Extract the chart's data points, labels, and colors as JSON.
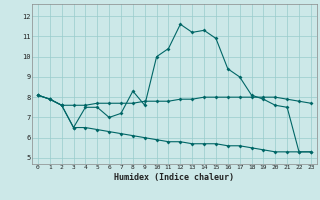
{
  "xlabel": "Humidex (Indice chaleur)",
  "background_color": "#cce8e8",
  "grid_color": "#99cccc",
  "line_color": "#006666",
  "x_ticks": [
    0,
    1,
    2,
    3,
    4,
    5,
    6,
    7,
    8,
    9,
    10,
    11,
    12,
    13,
    14,
    15,
    16,
    17,
    18,
    19,
    20,
    21,
    22,
    23
  ],
  "y_ticks": [
    5,
    6,
    7,
    8,
    9,
    10,
    11,
    12
  ],
  "xlim": [
    -0.5,
    23.5
  ],
  "ylim": [
    4.7,
    12.6
  ],
  "line1_x": [
    0,
    1,
    2,
    3,
    4,
    5,
    6,
    7,
    8,
    9,
    10,
    11,
    12,
    13,
    14,
    15,
    16,
    17,
    18,
    19,
    20,
    21,
    22,
    23
  ],
  "line1_y": [
    8.1,
    7.9,
    7.6,
    6.5,
    7.5,
    7.5,
    7.0,
    7.2,
    8.3,
    7.6,
    10.0,
    10.4,
    11.6,
    11.2,
    11.3,
    10.9,
    9.4,
    9.0,
    8.1,
    7.9,
    7.6,
    7.5,
    5.3,
    5.3
  ],
  "line2_x": [
    0,
    1,
    2,
    3,
    4,
    5,
    6,
    7,
    8,
    9,
    10,
    11,
    12,
    13,
    14,
    15,
    16,
    17,
    18,
    19,
    20,
    21,
    22,
    23
  ],
  "line2_y": [
    8.1,
    7.9,
    7.6,
    7.6,
    7.6,
    7.7,
    7.7,
    7.7,
    7.7,
    7.8,
    7.8,
    7.8,
    7.9,
    7.9,
    8.0,
    8.0,
    8.0,
    8.0,
    8.0,
    8.0,
    8.0,
    7.9,
    7.8,
    7.7
  ],
  "line3_x": [
    0,
    1,
    2,
    3,
    4,
    5,
    6,
    7,
    8,
    9,
    10,
    11,
    12,
    13,
    14,
    15,
    16,
    17,
    18,
    19,
    20,
    21,
    22,
    23
  ],
  "line3_y": [
    8.1,
    7.9,
    7.6,
    6.5,
    6.5,
    6.4,
    6.3,
    6.2,
    6.1,
    6.0,
    5.9,
    5.8,
    5.8,
    5.7,
    5.7,
    5.7,
    5.6,
    5.6,
    5.5,
    5.4,
    5.3,
    5.3,
    5.3,
    5.3
  ]
}
